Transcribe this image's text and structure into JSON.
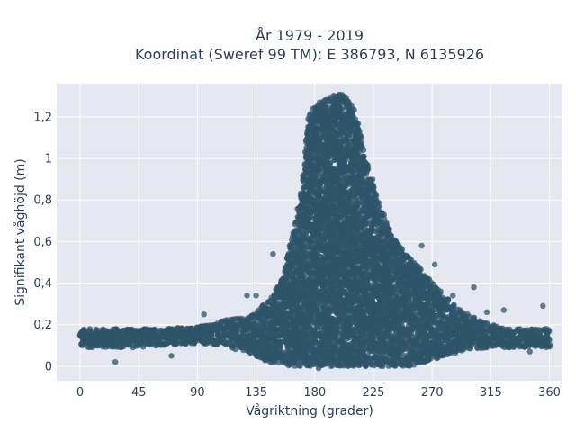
{
  "chart_data": {
    "type": "scatter",
    "title_line1": "År 1979 - 2019",
    "title_line2": "Koordinat (Sweref 99 TM): E 386793, N 6135926",
    "xlabel": "Vågriktning (grader)",
    "ylabel": "Signifikant våghöjd (m)",
    "xlim": [
      -18,
      370
    ],
    "ylim": [
      -0.07,
      1.36
    ],
    "x_ticks": [
      0,
      45,
      90,
      135,
      180,
      225,
      270,
      315,
      360
    ],
    "x_tick_labels": [
      "0",
      "45",
      "90",
      "135",
      "180",
      "225",
      "270",
      "315",
      "360"
    ],
    "y_ticks": [
      0,
      0.2,
      0.4,
      0.6,
      0.8,
      1.0,
      1.2
    ],
    "y_tick_labels": [
      "0",
      "0,2",
      "0,4",
      "0,6",
      "0,8",
      "1",
      "1,2"
    ],
    "grid": true,
    "marker_color": "#2f5469",
    "background_color": "#e5e8f0",
    "envelope": {
      "x": [
        0,
        20,
        45,
        60,
        90,
        110,
        130,
        145,
        155,
        160,
        165,
        170,
        175,
        180,
        185,
        190,
        195,
        200,
        205,
        210,
        215,
        220,
        225,
        230,
        235,
        240,
        250,
        260,
        270,
        280,
        290,
        300,
        315,
        330,
        345,
        360
      ],
      "y_max": [
        0.18,
        0.18,
        0.18,
        0.18,
        0.19,
        0.22,
        0.24,
        0.32,
        0.42,
        0.55,
        0.7,
        0.85,
        1.2,
        1.26,
        1.28,
        1.3,
        1.31,
        1.31,
        1.29,
        1.24,
        1.12,
        0.98,
        0.88,
        0.78,
        0.7,
        0.62,
        0.54,
        0.48,
        0.4,
        0.34,
        0.28,
        0.24,
        0.2,
        0.18,
        0.18,
        0.18
      ],
      "y_min": [
        0.09,
        0.09,
        0.09,
        0.1,
        0.11,
        0.1,
        0.06,
        0.02,
        0.01,
        0.0,
        0.0,
        0.0,
        0.0,
        0.0,
        0.0,
        0.0,
        0.0,
        0.0,
        0.0,
        0.0,
        0.0,
        0.0,
        0.0,
        0.0,
        0.0,
        0.0,
        0.0,
        0.01,
        0.03,
        0.05,
        0.06,
        0.08,
        0.09,
        0.09,
        0.09,
        0.09
      ]
    },
    "outliers": [
      {
        "x": 27,
        "y": 0.02
      },
      {
        "x": 70,
        "y": 0.05
      },
      {
        "x": 95,
        "y": 0.25
      },
      {
        "x": 128,
        "y": 0.34
      },
      {
        "x": 135,
        "y": 0.34
      },
      {
        "x": 148,
        "y": 0.54
      },
      {
        "x": 262,
        "y": 0.58
      },
      {
        "x": 272,
        "y": 0.49
      },
      {
        "x": 286,
        "y": 0.34
      },
      {
        "x": 302,
        "y": 0.38
      },
      {
        "x": 312,
        "y": 0.26
      },
      {
        "x": 325,
        "y": 0.27
      },
      {
        "x": 345,
        "y": 0.07
      },
      {
        "x": 355,
        "y": 0.29
      },
      {
        "x": 183,
        "y": -0.01
      }
    ]
  }
}
